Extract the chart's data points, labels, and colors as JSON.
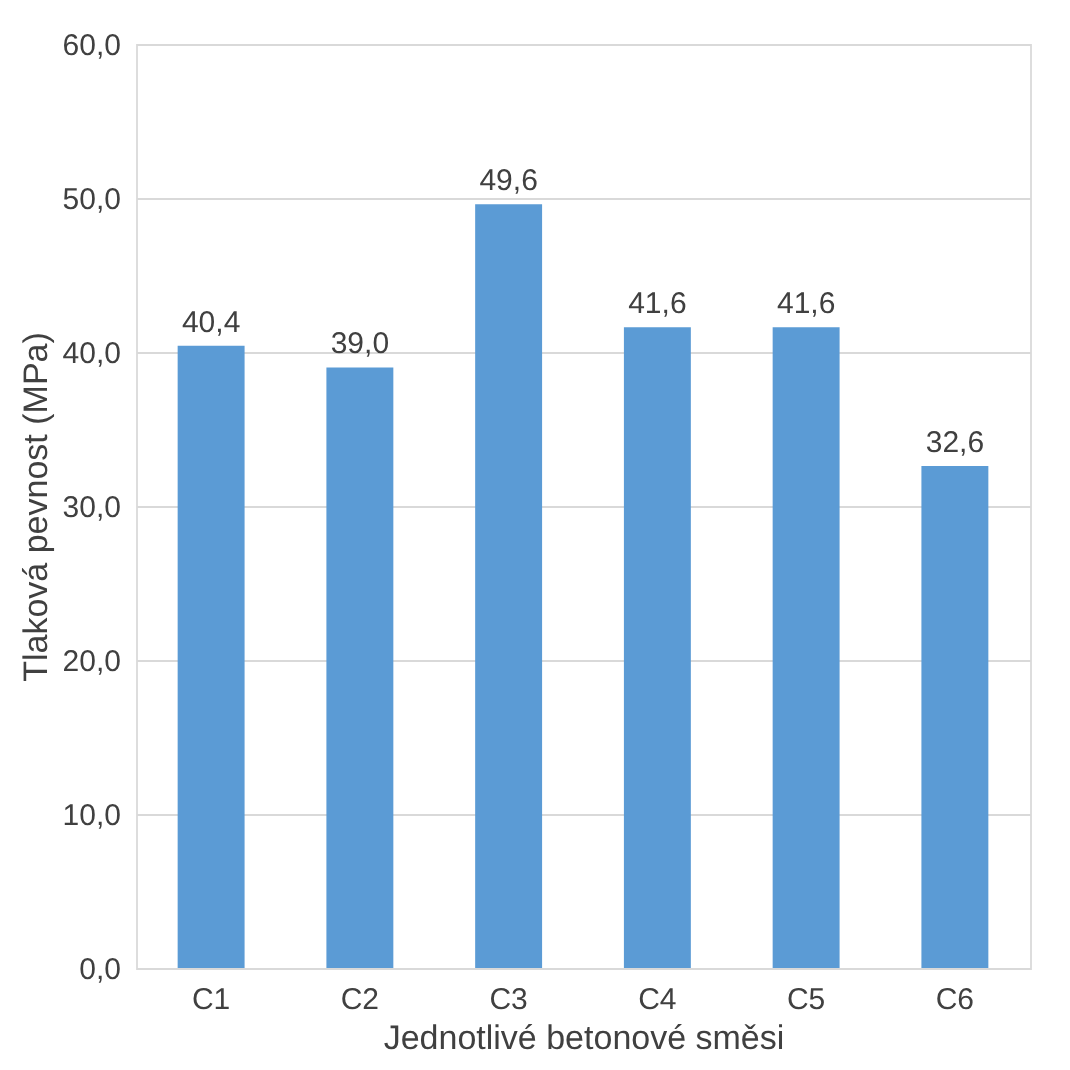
{
  "chart_data": {
    "type": "bar",
    "xlabel": "Jednotlivé betonové směsi",
    "ylabel": "Tlaková pevnost (MPa)",
    "categories": [
      "C1",
      "C2",
      "C3",
      "C4",
      "C5",
      "C6"
    ],
    "values": [
      40.4,
      39.0,
      49.6,
      41.6,
      41.6,
      32.6
    ],
    "value_labels": [
      "40,4",
      "39,0",
      "49,6",
      "41,6",
      "41,6",
      "32,6"
    ],
    "color": "#5b9bd5",
    "ylim": [
      0,
      60
    ],
    "yticks": [
      {
        "value": 0,
        "label": "0,0"
      },
      {
        "value": 10,
        "label": "10,0"
      },
      {
        "value": 20,
        "label": "20,0"
      },
      {
        "value": 30,
        "label": "30,0"
      },
      {
        "value": 40,
        "label": "40,0"
      },
      {
        "value": 50,
        "label": "50,0"
      },
      {
        "value": 60,
        "label": "60,0"
      }
    ],
    "grid": "y"
  }
}
